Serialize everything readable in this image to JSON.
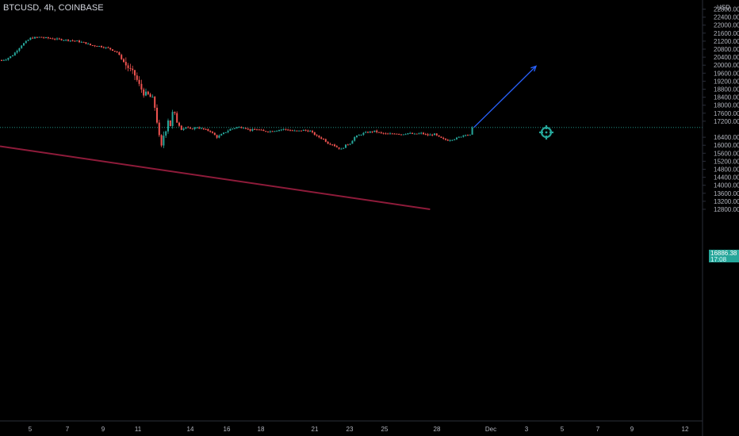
{
  "header": {
    "symbol_title": "BTCUSD, 4h, COINBASE"
  },
  "axis": {
    "currency": "USD",
    "y_ticks": [
      "22800.00",
      "22400.00",
      "22000.00",
      "21600.00",
      "21200.00",
      "20800.00",
      "20400.00",
      "20000.00",
      "19600.00",
      "19200.00",
      "18800.00",
      "18400.00",
      "18000.00",
      "17600.00",
      "17200.00",
      "16400.00",
      "16000.00",
      "15600.00",
      "15200.00",
      "14800.00",
      "14400.00",
      "14000.00",
      "13600.00",
      "13200.00",
      "12800.00"
    ],
    "x_ticks": [
      "5",
      "7",
      "9",
      "11",
      "14",
      "16",
      "18",
      "21",
      "23",
      "25",
      "28",
      "Dec",
      "3",
      "5",
      "7",
      "9",
      "12"
    ]
  },
  "last_price": {
    "value": "16886.38",
    "countdown": "17:08"
  },
  "colors": {
    "up": "#26a69a",
    "down": "#ef5350",
    "projection_arrow": "#2962ff",
    "trendline": "#8e1b3a",
    "target_icon": "#26a69a",
    "price_line": "#26a69a"
  },
  "annotations": {
    "target_icon": "crosshair-target-icon",
    "projection": "arrow-up-right"
  },
  "chart_data": {
    "type": "candlestick",
    "symbol": "BTCUSD",
    "interval": "4h",
    "exchange": "COINBASE",
    "ylim": [
      12600,
      22900
    ],
    "last_close": 16886.38,
    "x_tick_labels": [
      "5",
      "7",
      "9",
      "11",
      "14",
      "16",
      "18",
      "21",
      "23",
      "25",
      "28",
      "Dec",
      "3",
      "5",
      "7",
      "9",
      "12"
    ],
    "price_path": [
      [
        0,
        20250
      ],
      [
        2,
        20300
      ],
      [
        5,
        20500
      ],
      [
        9,
        21000
      ],
      [
        13,
        21350
      ],
      [
        17,
        21400
      ],
      [
        21,
        21350
      ],
      [
        25,
        21300
      ],
      [
        30,
        21250
      ],
      [
        34,
        21200
      ],
      [
        38,
        21100
      ],
      [
        40,
        21000
      ],
      [
        44,
        20950
      ],
      [
        48,
        20850
      ],
      [
        52,
        20650
      ],
      [
        56,
        20000
      ],
      [
        60,
        19500
      ],
      [
        62,
        19000
      ],
      [
        64,
        18600
      ],
      [
        66,
        18500
      ],
      [
        68,
        18300
      ],
      [
        69,
        17900
      ],
      [
        70,
        17200
      ],
      [
        71,
        16400
      ],
      [
        72,
        15900
      ],
      [
        73,
        16500
      ],
      [
        74,
        16800
      ],
      [
        75,
        17300
      ],
      [
        76,
        17000
      ],
      [
        77,
        17600
      ],
      [
        78,
        17500
      ],
      [
        79,
        17200
      ],
      [
        80,
        17000
      ],
      [
        81,
        16800
      ],
      [
        83,
        16900
      ],
      [
        85,
        16800
      ],
      [
        88,
        16900
      ],
      [
        91,
        16800
      ],
      [
        94,
        16700
      ],
      [
        97,
        16400
      ],
      [
        100,
        16600
      ],
      [
        103,
        16800
      ],
      [
        106,
        16900
      ],
      [
        109,
        16900
      ],
      [
        112,
        16750
      ],
      [
        115,
        16800
      ],
      [
        118,
        16700
      ],
      [
        121,
        16700
      ],
      [
        124,
        16750
      ],
      [
        127,
        16800
      ],
      [
        130,
        16750
      ],
      [
        133,
        16700
      ],
      [
        136,
        16750
      ],
      [
        139,
        16700
      ],
      [
        142,
        16450
      ],
      [
        145,
        16300
      ],
      [
        147,
        16100
      ],
      [
        149,
        16050
      ],
      [
        151,
        15900
      ],
      [
        153,
        15800
      ],
      [
        155,
        16000
      ],
      [
        157,
        16100
      ],
      [
        159,
        16400
      ],
      [
        161,
        16500
      ],
      [
        163,
        16600
      ],
      [
        165,
        16650
      ],
      [
        168,
        16700
      ],
      [
        171,
        16600
      ],
      [
        174,
        16550
      ],
      [
        177,
        16600
      ],
      [
        180,
        16550
      ],
      [
        183,
        16600
      ],
      [
        186,
        16550
      ],
      [
        189,
        16600
      ],
      [
        192,
        16500
      ],
      [
        195,
        16550
      ],
      [
        197,
        16400
      ],
      [
        199,
        16300
      ],
      [
        201,
        16250
      ],
      [
        203,
        16300
      ],
      [
        205,
        16350
      ],
      [
        207,
        16450
      ],
      [
        209,
        16550
      ],
      [
        211,
        16500
      ],
      [
        212,
        16886.38
      ]
    ],
    "projection": {
      "from": [
        212,
        16886.38
      ],
      "to": [
        240,
        19950
      ]
    },
    "trendline": {
      "from": [
        0,
        15950
      ],
      "to": [
        193,
        12800
      ]
    }
  }
}
